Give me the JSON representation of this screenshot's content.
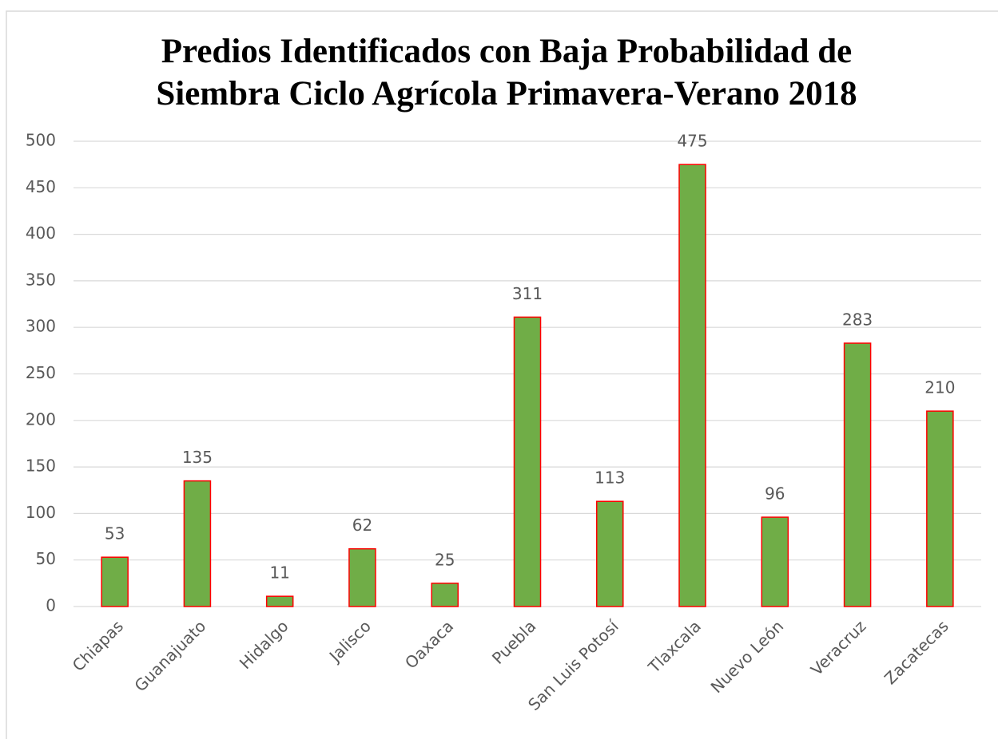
{
  "chart_data": {
    "type": "bar",
    "title": "Predios Identificados con Baja Probabilidad de Siembra Ciclo Agrícola Primavera-Verano 2018",
    "categories": [
      "Chiapas",
      "Guanajuato",
      "Hidalgo",
      "Jalisco",
      "Oaxaca",
      "Puebla",
      "San Luis Potosí",
      "Tlaxcala",
      "Nuevo León",
      "Veracruz",
      "Zacatecas"
    ],
    "values": [
      53,
      135,
      11,
      62,
      25,
      311,
      113,
      475,
      96,
      283,
      210
    ],
    "color": "#70ad47",
    "edge_color": "#ff0000",
    "ylim": [
      0,
      500
    ],
    "yticks": [
      0,
      50,
      100,
      150,
      200,
      250,
      300,
      350,
      400,
      450,
      500
    ],
    "grid": true
  }
}
